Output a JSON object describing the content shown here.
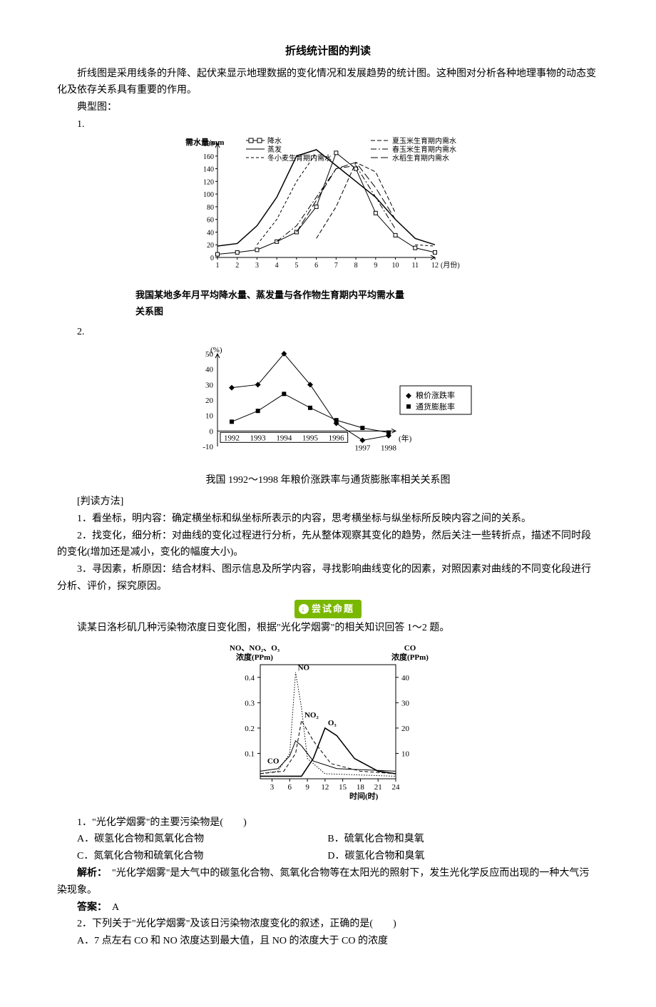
{
  "title": "折线统计图的判读",
  "intro": "折线图是采用线条的升降、起伏来显示地理数据的变化情况和发展趋势的统计图。这种图对分析各种地理事物的动态变化及依存关系具有重要的作用。",
  "typical_label": "典型图：",
  "item1": "1.",
  "item2": "2.",
  "chart1": {
    "type": "line",
    "y_label": "需水量/mm",
    "y_ticks": [
      0,
      20,
      40,
      60,
      80,
      100,
      120,
      140,
      160,
      180
    ],
    "x_ticks": [
      1,
      2,
      3,
      4,
      5,
      6,
      7,
      8,
      9,
      10,
      11,
      12
    ],
    "x_unit": "(月份)",
    "legend": [
      {
        "key": "p",
        "label": "降水",
        "style": "square-solid"
      },
      {
        "key": "e",
        "label": "蒸发",
        "style": "solid"
      },
      {
        "key": "w",
        "label": "冬小麦生育期内需水",
        "style": "dash"
      },
      {
        "key": "sc",
        "label": "夏玉米生育期内需水",
        "style": "dash2"
      },
      {
        "key": "spc",
        "label": "春玉米生育期内需水",
        "style": "dashdot"
      },
      {
        "key": "r",
        "label": "水稻生育期内需水",
        "style": "dashlong"
      }
    ],
    "series": {
      "p": [
        5,
        8,
        12,
        25,
        40,
        80,
        165,
        140,
        70,
        35,
        15,
        8
      ],
      "e": [
        18,
        22,
        50,
        95,
        160,
        170,
        145,
        120,
        95,
        60,
        30,
        20
      ],
      "w": [
        null,
        null,
        20,
        60,
        120,
        165,
        null,
        null,
        null,
        null,
        20,
        18
      ],
      "sc": [
        null,
        null,
        null,
        null,
        null,
        30,
        80,
        150,
        135,
        70,
        null,
        null
      ],
      "spc": [
        null,
        null,
        null,
        25,
        50,
        95,
        140,
        145,
        95,
        45,
        null,
        null
      ],
      "r": [
        null,
        null,
        null,
        null,
        40,
        90,
        140,
        150,
        110,
        60,
        null,
        null
      ]
    },
    "colors": {
      "axis": "#000",
      "grid": "#000"
    },
    "caption_l1": "我国某地多年月平均降水量、蒸发量与各作物生育期内平均需水量",
    "caption_l2": "关系图"
  },
  "chart2": {
    "type": "line",
    "y_label": "(%)",
    "y_ticks": [
      -10,
      0,
      10,
      20,
      30,
      40,
      50
    ],
    "x_ticks": [
      1992,
      1993,
      1994,
      1995,
      1996,
      1997,
      1998
    ],
    "x_unit": "(年)",
    "legend": [
      {
        "key": "g",
        "label": "粮价涨跌率",
        "marker": "diamond"
      },
      {
        "key": "i",
        "label": "通货膨胀率",
        "marker": "square"
      }
    ],
    "series": {
      "g": [
        28,
        30,
        50,
        30,
        5,
        -6,
        -3
      ],
      "i": [
        6,
        13,
        24,
        15,
        7,
        2,
        -1
      ]
    },
    "colors": {
      "axis": "#000",
      "marker": "#000"
    },
    "caption": "我国 1992～1998 年粮价涨跌率与通货膨胀率相关关系图"
  },
  "method_head": "[判读方法]",
  "method1": "1．看坐标，明内容：确定横坐标和纵坐标所表示的内容，思考横坐标与纵坐标所反映内容之间的关系。",
  "method2": "2．找变化，细分析：对曲线的变化过程进行分析，先从整体观察其变化的趋势，然后关注一些转折点，描述不同时段的变化(增加还是减小，变化的幅度大小)。",
  "method3": "3．寻因素，析原因：结合材料、图示信息及所学内容，寻找影响曲线变化的因素，对照因素对曲线的不同变化段进行分析、评价，探究原因。",
  "badge": "尝试命题",
  "q_intro": "读某日洛杉矶几种污染物浓度日变化图，根据\"光化学烟雾\"的相关知识回答 1～2 题。",
  "chart3": {
    "type": "line",
    "left_label_l1": "NO、NO₂、O₃",
    "left_label_l2": "浓度(PPm)",
    "right_label_l1": "CO",
    "right_label_l2": "浓度(PPm)",
    "left_ticks": [
      0.1,
      0.2,
      0.3,
      0.4
    ],
    "right_ticks": [
      10,
      20,
      30,
      40
    ],
    "x_ticks": [
      3,
      6,
      9,
      12,
      15,
      18,
      21,
      24
    ],
    "x_label": "时间(时)",
    "curve_labels": {
      "NO": "NO",
      "NO2": "NO₂",
      "O3": "O₃",
      "CO": "CO"
    },
    "series": {
      "NO": [
        [
          1,
          0.02
        ],
        [
          4,
          0.03
        ],
        [
          6,
          0.1
        ],
        [
          7,
          0.42
        ],
        [
          8,
          0.28
        ],
        [
          9,
          0.08
        ],
        [
          12,
          0.02
        ],
        [
          24,
          0.01
        ]
      ],
      "NO2": [
        [
          1,
          0.02
        ],
        [
          5,
          0.03
        ],
        [
          7,
          0.1
        ],
        [
          8,
          0.23
        ],
        [
          10,
          0.15
        ],
        [
          13,
          0.06
        ],
        [
          18,
          0.03
        ],
        [
          24,
          0.02
        ]
      ],
      "O3": [
        [
          1,
          0.01
        ],
        [
          8,
          0.01
        ],
        [
          10,
          0.08
        ],
        [
          12,
          0.2
        ],
        [
          14,
          0.17
        ],
        [
          17,
          0.08
        ],
        [
          21,
          0.03
        ],
        [
          24,
          0.02
        ]
      ],
      "CO": [
        [
          1,
          3
        ],
        [
          4,
          4
        ],
        [
          6,
          9
        ],
        [
          7,
          15
        ],
        [
          8,
          13
        ],
        [
          10,
          7
        ],
        [
          14,
          4
        ],
        [
          24,
          3
        ]
      ]
    },
    "styles": {
      "NO": "dot",
      "NO2": "dash",
      "O3": "solid",
      "CO": "solid-thin"
    },
    "colors": {
      "axis": "#000",
      "bg": "#fff"
    }
  },
  "q1": {
    "stem": "1．\"光化学烟雾\"的主要污染物是(　　)",
    "A": "A．碳氢化合物和氮氧化合物",
    "B": "B．硫氧化合物和臭氧",
    "C": "C．氮氧化合物和硫氧化合物",
    "D": "D．碳氢化合物和臭氧",
    "exp_head": "解析：",
    "exp": "　\"光化学烟雾\"是大气中的碳氢化合物、氮氧化合物等在太阳光的照射下，发生光化学反应而出现的一种大气污染现象。",
    "ans_head": "答案：",
    "ans": "　A"
  },
  "q2": {
    "stem": "2．下列关于\"光化学烟雾\"及该日污染物浓度变化的叙述，正确的是(　　)",
    "A": "A．7 点左右 CO 和 NO 浓度达到最大值，且 NO 的浓度大于 CO 的浓度"
  }
}
